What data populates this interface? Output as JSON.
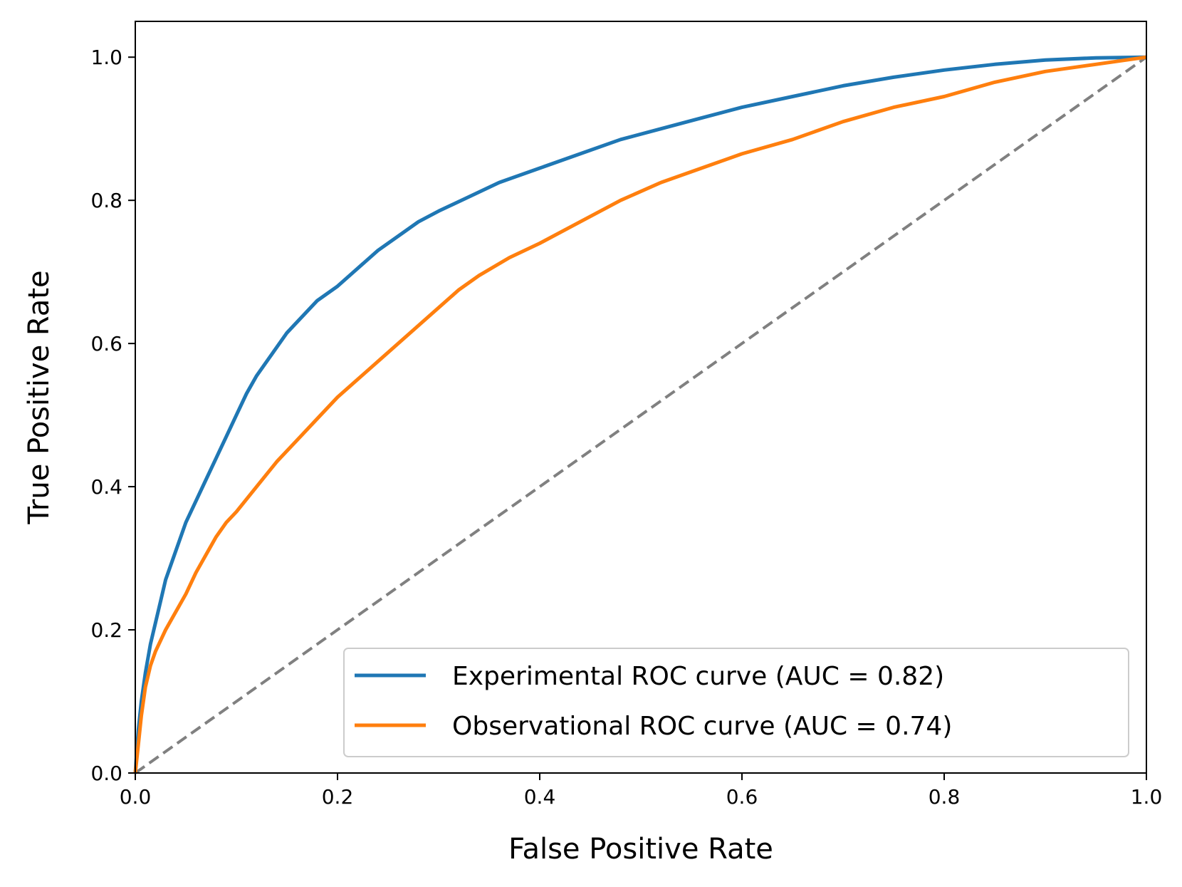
{
  "chart_data": {
    "type": "line",
    "xlabel": "False Positive Rate",
    "ylabel": "True Positive Rate",
    "xlim": [
      0.0,
      1.0
    ],
    "ylim": [
      0.0,
      1.05
    ],
    "xticks": [
      "0.0",
      "0.2",
      "0.4",
      "0.6",
      "0.8",
      "1.0"
    ],
    "yticks": [
      "0.0",
      "0.2",
      "0.4",
      "0.6",
      "0.8",
      "1.0"
    ],
    "grid": false,
    "legend_position": "lower-right",
    "series": [
      {
        "name": "Experimental ROC curve (AUC = 0.82)",
        "color": "#1f77b4",
        "x": [
          0.0,
          0.003,
          0.006,
          0.01,
          0.015,
          0.02,
          0.025,
          0.03,
          0.04,
          0.05,
          0.06,
          0.07,
          0.08,
          0.09,
          0.1,
          0.11,
          0.12,
          0.13,
          0.14,
          0.15,
          0.16,
          0.18,
          0.2,
          0.22,
          0.24,
          0.26,
          0.28,
          0.3,
          0.33,
          0.36,
          0.4,
          0.44,
          0.48,
          0.52,
          0.56,
          0.6,
          0.65,
          0.7,
          0.75,
          0.8,
          0.85,
          0.9,
          0.95,
          1.0
        ],
        "y": [
          0.0,
          0.06,
          0.1,
          0.14,
          0.18,
          0.21,
          0.24,
          0.27,
          0.31,
          0.35,
          0.38,
          0.41,
          0.44,
          0.47,
          0.5,
          0.53,
          0.555,
          0.575,
          0.595,
          0.615,
          0.63,
          0.66,
          0.68,
          0.705,
          0.73,
          0.75,
          0.77,
          0.785,
          0.805,
          0.825,
          0.845,
          0.865,
          0.885,
          0.9,
          0.915,
          0.93,
          0.945,
          0.96,
          0.972,
          0.982,
          0.99,
          0.996,
          0.999,
          1.0
        ]
      },
      {
        "name": "Observational ROC curve (AUC = 0.74)",
        "color": "#ff7f0e",
        "x": [
          0.0,
          0.003,
          0.006,
          0.01,
          0.015,
          0.02,
          0.03,
          0.04,
          0.05,
          0.06,
          0.07,
          0.08,
          0.09,
          0.1,
          0.12,
          0.14,
          0.16,
          0.18,
          0.2,
          0.22,
          0.24,
          0.26,
          0.28,
          0.3,
          0.32,
          0.34,
          0.37,
          0.4,
          0.44,
          0.48,
          0.52,
          0.56,
          0.6,
          0.65,
          0.7,
          0.75,
          0.8,
          0.85,
          0.9,
          0.95,
          1.0
        ],
        "y": [
          0.0,
          0.04,
          0.08,
          0.12,
          0.15,
          0.17,
          0.2,
          0.225,
          0.25,
          0.28,
          0.305,
          0.33,
          0.35,
          0.365,
          0.4,
          0.435,
          0.465,
          0.495,
          0.525,
          0.55,
          0.575,
          0.6,
          0.625,
          0.65,
          0.675,
          0.695,
          0.72,
          0.74,
          0.77,
          0.8,
          0.825,
          0.845,
          0.865,
          0.885,
          0.91,
          0.93,
          0.945,
          0.965,
          0.98,
          0.99,
          1.0
        ]
      },
      {
        "name": "",
        "color": "#808080",
        "dashed": true,
        "x": [
          0.0,
          1.0
        ],
        "y": [
          0.0,
          1.0
        ]
      }
    ]
  }
}
